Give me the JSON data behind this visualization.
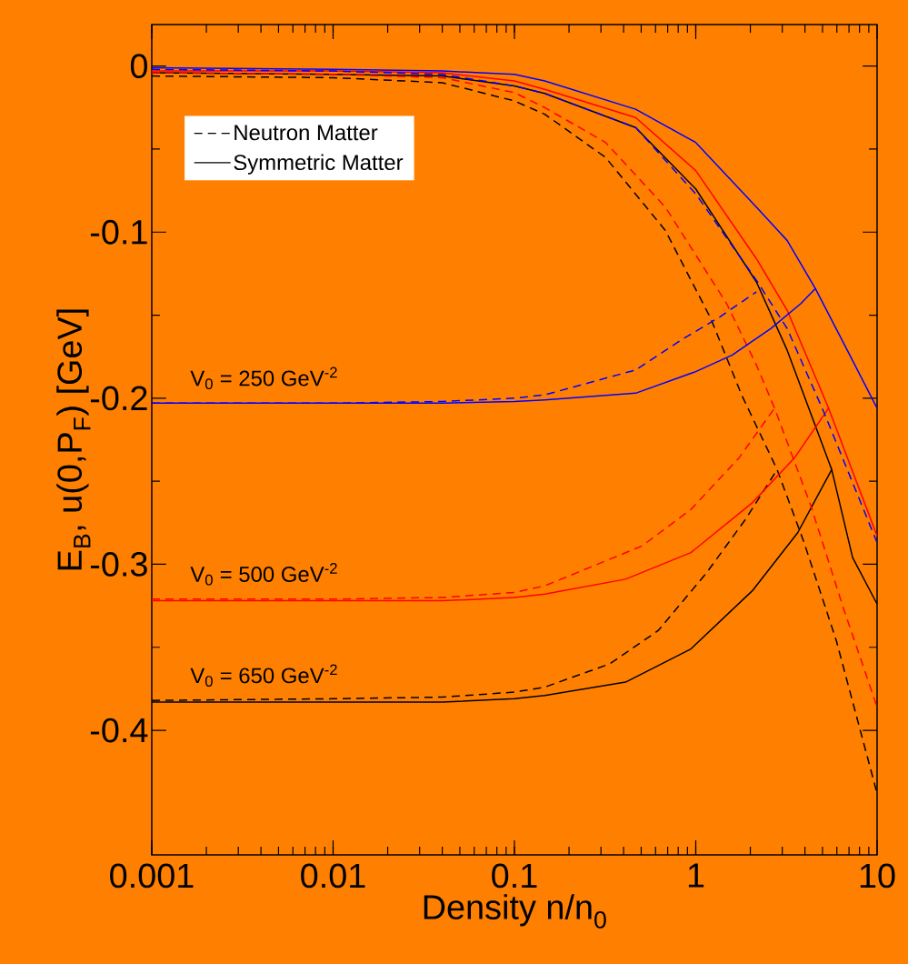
{
  "chart_data": {
    "type": "line",
    "xlabel": "Density n/n$_{0}$",
    "ylabel": "E$_{B}$, u(0,P$_{F}$)  [GeV]",
    "log": "x",
    "xlim": [
      0.001,
      10
    ],
    "ylim": [
      -0.475,
      0.025
    ],
    "xticks": [
      0.001,
      0.01,
      0.1,
      1,
      10
    ],
    "yticks": [
      -0.4,
      -0.3,
      -0.2,
      -0.1,
      0
    ],
    "legend": "top left",
    "annotations": [
      "V$_{0}$ = 250 GeV$^{-2}$",
      "V$_{0}$ = 500 GeV$^{-2}$",
      "V$_{0}$ = 650 GeV$^{-2}$"
    ],
    "series": [
      {
        "name": "Neutron Matter",
        "color": "#000000",
        "line_style": "dashed",
        "x": [
          0.001,
          0.01,
          0.04,
          0.1,
          0.147,
          0.318,
          0.68,
          1.21,
          1.79,
          2.81,
          3.96,
          5.96,
          10
        ],
        "values": [
          -0.006,
          -0.007,
          -0.01,
          -0.021,
          -0.029,
          -0.055,
          -0.099,
          -0.152,
          -0.198,
          -0.243,
          -0.287,
          -0.346,
          -0.438
        ]
      },
      {
        "name": "Symmetric Matter",
        "color": "#000000",
        "line_style": "solid",
        "x": [
          0.001,
          0.01,
          0.04,
          0.1,
          0.147,
          0.466,
          1.0,
          2.16,
          3.19,
          5.62,
          7.33,
          10
        ],
        "values": [
          -0.004,
          -0.005,
          -0.006,
          -0.012,
          -0.0165,
          -0.037,
          -0.074,
          -0.13,
          -0.171,
          -0.243,
          -0.296,
          -0.324
        ]
      },
      {
        "color": "#000000",
        "line_style": "dashed",
        "x": [
          0.001,
          0.01,
          0.04,
          0.1,
          0.147,
          0.335,
          0.62,
          1.15,
          1.88,
          2.81
        ],
        "values": [
          -0.382,
          -0.381,
          -0.38,
          -0.377,
          -0.374,
          -0.36,
          -0.34,
          -0.305,
          -0.273,
          -0.243
        ]
      },
      {
        "color": "#000000",
        "line_style": "solid",
        "x": [
          0.001,
          0.01,
          0.04,
          0.1,
          0.147,
          0.41,
          0.94,
          2.05,
          3.65,
          5.62
        ],
        "values": [
          -0.383,
          -0.383,
          -0.383,
          -0.381,
          -0.379,
          -0.371,
          -0.351,
          -0.316,
          -0.281,
          -0.243
        ]
      },
      {
        "color": "#ff0000",
        "line_style": "dashed",
        "x": [
          0.001,
          0.01,
          0.04,
          0.1,
          0.147,
          0.318,
          0.68,
          1.48,
          2.16,
          2.72,
          4.32,
          6.5,
          10
        ],
        "values": [
          -0.004,
          -0.005,
          -0.007,
          -0.016,
          -0.025,
          -0.046,
          -0.085,
          -0.143,
          -0.18,
          -0.206,
          -0.265,
          -0.326,
          -0.386
        ]
      },
      {
        "color": "#ff0000",
        "line_style": "solid",
        "x": [
          0.001,
          0.01,
          0.04,
          0.1,
          0.147,
          0.466,
          1.0,
          2.16,
          3.19,
          5.4,
          10
        ],
        "values": [
          -0.003,
          -0.003,
          -0.004,
          -0.009,
          -0.014,
          -0.031,
          -0.063,
          -0.116,
          -0.147,
          -0.206,
          -0.283
        ]
      },
      {
        "color": "#ff0000",
        "line_style": "dashed",
        "x": [
          0.001,
          0.01,
          0.04,
          0.1,
          0.147,
          0.222,
          0.505,
          0.94,
          1.73,
          2.72
        ],
        "values": [
          -0.321,
          -0.321,
          -0.32,
          -0.317,
          -0.313,
          -0.305,
          -0.289,
          -0.267,
          -0.236,
          -0.206
        ]
      },
      {
        "color": "#ff0000",
        "line_style": "solid",
        "x": [
          0.001,
          0.01,
          0.04,
          0.1,
          0.147,
          0.41,
          0.94,
          2.05,
          3.5,
          5.4
        ],
        "values": [
          -0.322,
          -0.322,
          -0.322,
          -0.32,
          -0.318,
          -0.309,
          -0.293,
          -0.263,
          -0.236,
          -0.206
        ]
      },
      {
        "color": "#0000ff",
        "line_style": "dashed",
        "x": [
          0.001,
          0.01,
          0.04,
          0.1,
          0.147,
          0.466,
          1.0,
          2.16,
          3.19,
          5.07,
          10
        ],
        "values": [
          -0.002,
          -0.003,
          -0.005,
          -0.012,
          -0.0165,
          -0.037,
          -0.077,
          -0.129,
          -0.158,
          -0.208,
          -0.287
        ]
      },
      {
        "color": "#0000ff",
        "line_style": "solid",
        "x": [
          0.001,
          0.01,
          0.04,
          0.1,
          0.147,
          0.466,
          1.0,
          2.16,
          3.19,
          4.57,
          6.84,
          10
        ],
        "values": [
          -0.001,
          -0.002,
          -0.003,
          -0.005,
          -0.009,
          -0.026,
          -0.046,
          -0.085,
          -0.105,
          -0.134,
          -0.171,
          -0.206
        ]
      },
      {
        "color": "#0000ff",
        "line_style": "dashed",
        "x": [
          0.001,
          0.01,
          0.04,
          0.1,
          0.147,
          0.466,
          0.83,
          1.36,
          2.16
        ],
        "values": [
          -0.203,
          -0.203,
          -0.202,
          -0.2,
          -0.198,
          -0.183,
          -0.165,
          -0.151,
          -0.136
        ]
      },
      {
        "color": "#0000ff",
        "line_style": "solid",
        "x": [
          0.001,
          0.01,
          0.04,
          0.1,
          0.147,
          0.466,
          1.0,
          1.59,
          2.6,
          3.8,
          4.57
        ],
        "values": [
          -0.203,
          -0.203,
          -0.203,
          -0.202,
          -0.201,
          -0.197,
          -0.184,
          -0.174,
          -0.158,
          -0.143,
          -0.134
        ]
      }
    ]
  }
}
